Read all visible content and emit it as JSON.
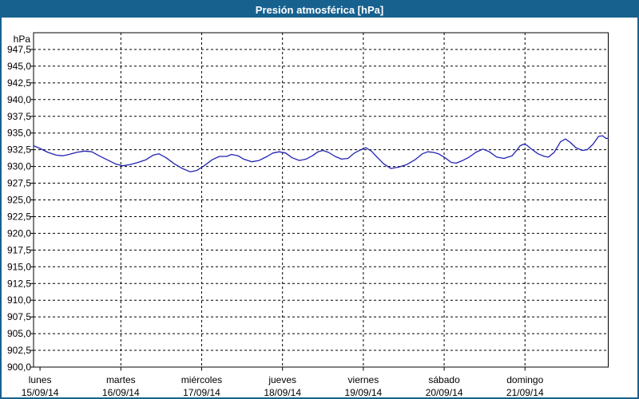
{
  "window": {
    "title": "Presión atmosférica [hPa]"
  },
  "colors": {
    "frame": "#17618f",
    "titlebar": "#17618f",
    "titlebar_text": "#ffffff",
    "plot_background": "#ffffff",
    "axis": "#000000",
    "grid": "#000000",
    "text": "#000000",
    "line": "#2222b2"
  },
  "chart_data": {
    "type": "line",
    "title": "Presión atmosférica [hPa]",
    "grid": {
      "horizontal": "dashed",
      "vertical": "dashed",
      "vertical_at_days": [
        1,
        2,
        3,
        4,
        5,
        6
      ]
    },
    "legend": "none",
    "y_axis": {
      "unit_label": "hPa",
      "min": 900,
      "max": 950,
      "tick_step": 2.5,
      "tick_labels": [
        "947,5",
        "945,0",
        "942,5",
        "940,0",
        "937,5",
        "935,0",
        "932,5",
        "930,0",
        "927,5",
        "925,0",
        "922,5",
        "920,0",
        "917,5",
        "915,0",
        "912,5",
        "910,0",
        "907,5",
        "905,0",
        "902,5",
        "900,0"
      ],
      "tick_values": [
        947.5,
        945.0,
        942.5,
        940.0,
        937.5,
        935.0,
        932.5,
        930.0,
        927.5,
        925.0,
        922.5,
        920.0,
        917.5,
        915.0,
        912.5,
        910.0,
        907.5,
        905.0,
        902.5,
        900.0
      ]
    },
    "x_axis": {
      "min_days": -0.08,
      "max_days": 7.03,
      "tick_days": [
        0,
        1,
        2,
        3,
        4,
        5,
        6
      ],
      "days": [
        {
          "name": "lunes",
          "date": "15/09/14"
        },
        {
          "name": "martes",
          "date": "16/09/14"
        },
        {
          "name": "miércoles",
          "date": "17/09/14"
        },
        {
          "name": "jueves",
          "date": "18/09/14"
        },
        {
          "name": "viernes",
          "date": "19/09/14"
        },
        {
          "name": "sábado",
          "date": "20/09/14"
        },
        {
          "name": "domingo",
          "date": "21/09/14"
        }
      ]
    },
    "series": [
      {
        "name": "Presión atmosférica",
        "color": "#2222b2",
        "unit": "hPa",
        "points": [
          [
            -0.08,
            933.1
          ],
          [
            0.0,
            932.7
          ],
          [
            0.1,
            932.1
          ],
          [
            0.2,
            931.7
          ],
          [
            0.28,
            931.6
          ],
          [
            0.36,
            931.8
          ],
          [
            0.45,
            932.1
          ],
          [
            0.55,
            932.3
          ],
          [
            0.64,
            932.2
          ],
          [
            0.73,
            931.6
          ],
          [
            0.83,
            931.0
          ],
          [
            0.93,
            930.4
          ],
          [
            1.02,
            930.1
          ],
          [
            1.12,
            930.3
          ],
          [
            1.21,
            930.6
          ],
          [
            1.31,
            931.0
          ],
          [
            1.4,
            931.7
          ],
          [
            1.47,
            931.9
          ],
          [
            1.56,
            931.3
          ],
          [
            1.66,
            930.4
          ],
          [
            1.76,
            929.7
          ],
          [
            1.86,
            929.2
          ],
          [
            1.94,
            929.4
          ],
          [
            2.03,
            930.1
          ],
          [
            2.13,
            931.0
          ],
          [
            2.22,
            931.5
          ],
          [
            2.31,
            931.5
          ],
          [
            2.37,
            931.8
          ],
          [
            2.45,
            931.6
          ],
          [
            2.52,
            931.1
          ],
          [
            2.62,
            930.7
          ],
          [
            2.71,
            930.9
          ],
          [
            2.81,
            931.5
          ],
          [
            2.88,
            932.0
          ],
          [
            2.96,
            932.2
          ],
          [
            3.04,
            932.0
          ],
          [
            3.12,
            931.3
          ],
          [
            3.21,
            930.9
          ],
          [
            3.29,
            931.1
          ],
          [
            3.37,
            931.6
          ],
          [
            3.44,
            932.2
          ],
          [
            3.5,
            932.4
          ],
          [
            3.57,
            932.1
          ],
          [
            3.65,
            931.5
          ],
          [
            3.73,
            931.1
          ],
          [
            3.81,
            931.2
          ],
          [
            3.89,
            932.0
          ],
          [
            3.97,
            932.5
          ],
          [
            4.03,
            932.8
          ],
          [
            4.1,
            932.3
          ],
          [
            4.17,
            931.4
          ],
          [
            4.25,
            930.4
          ],
          [
            4.34,
            929.7
          ],
          [
            4.44,
            929.9
          ],
          [
            4.54,
            930.3
          ],
          [
            4.64,
            931.0
          ],
          [
            4.73,
            931.9
          ],
          [
            4.8,
            932.2
          ],
          [
            4.87,
            932.1
          ],
          [
            4.93,
            931.9
          ],
          [
            5.01,
            931.3
          ],
          [
            5.09,
            930.6
          ],
          [
            5.15,
            930.5
          ],
          [
            5.23,
            930.9
          ],
          [
            5.31,
            931.4
          ],
          [
            5.39,
            932.1
          ],
          [
            5.48,
            932.6
          ],
          [
            5.56,
            932.2
          ],
          [
            5.65,
            931.4
          ],
          [
            5.74,
            931.2
          ],
          [
            5.84,
            931.6
          ],
          [
            5.89,
            932.3
          ],
          [
            5.94,
            933.1
          ],
          [
            5.98,
            933.3
          ],
          [
            6.02,
            933.2
          ],
          [
            6.07,
            932.7
          ],
          [
            6.16,
            931.9
          ],
          [
            6.24,
            931.5
          ],
          [
            6.29,
            931.4
          ],
          [
            6.36,
            932.1
          ],
          [
            6.44,
            933.7
          ],
          [
            6.5,
            934.1
          ],
          [
            6.56,
            933.6
          ],
          [
            6.63,
            932.8
          ],
          [
            6.71,
            932.4
          ],
          [
            6.77,
            932.5
          ],
          [
            6.84,
            933.3
          ],
          [
            6.91,
            934.5
          ],
          [
            6.96,
            934.6
          ],
          [
            7.0,
            934.2
          ],
          [
            7.03,
            934.2
          ]
        ]
      }
    ]
  }
}
